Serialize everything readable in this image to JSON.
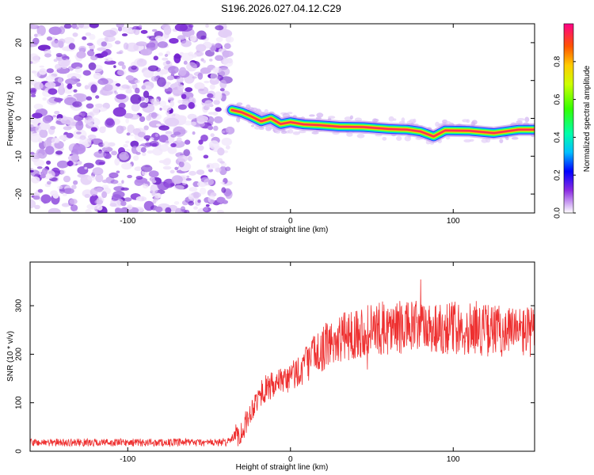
{
  "title": "S196.2026.027.04.12.C29",
  "chart_data": [
    {
      "type": "heatmap",
      "xlabel": "Height of straight line (km)",
      "ylabel": "Frequency (Hz)",
      "xlim": [
        -160,
        150
      ],
      "ylim": [
        -25,
        25
      ],
      "xticks": [
        -100,
        0,
        100
      ],
      "yticks": [
        -20,
        -10,
        0,
        10,
        20
      ],
      "colorbar": {
        "label": "Normalized spectral amplitude",
        "range": [
          0,
          1
        ],
        "ticks": [
          0.0,
          0.2,
          0.4,
          0.6,
          0.8
        ]
      },
      "noise_region_x": [
        -160,
        -37
      ],
      "ridge_x": [
        -37,
        150
      ],
      "ridge_freq": [
        {
          "x": -36,
          "f": 2.2
        },
        {
          "x": -30,
          "f": 1.6
        },
        {
          "x": -24,
          "f": 0.5
        },
        {
          "x": -18,
          "f": -0.8
        },
        {
          "x": -12,
          "f": 0.0
        },
        {
          "x": -6,
          "f": -1.5
        },
        {
          "x": 0,
          "f": -1.0
        },
        {
          "x": 8,
          "f": -1.6
        },
        {
          "x": 18,
          "f": -1.8
        },
        {
          "x": 30,
          "f": -2.2
        },
        {
          "x": 45,
          "f": -2.3
        },
        {
          "x": 60,
          "f": -2.8
        },
        {
          "x": 72,
          "f": -3.0
        },
        {
          "x": 80,
          "f": -3.5
        },
        {
          "x": 88,
          "f": -4.8
        },
        {
          "x": 95,
          "f": -3.2
        },
        {
          "x": 110,
          "f": -3.3
        },
        {
          "x": 125,
          "f": -3.9
        },
        {
          "x": 140,
          "f": -3.0
        },
        {
          "x": 150,
          "f": -3.0
        }
      ]
    },
    {
      "type": "line",
      "xlabel": "Height of straight line (km)",
      "ylabel": "SNR (10 * v/v)",
      "xlim": [
        -160,
        150
      ],
      "ylim": [
        0,
        390
      ],
      "xticks": [
        -100,
        0,
        100
      ],
      "yticks": [
        0,
        100,
        200,
        300
      ],
      "color": "#ee3030",
      "envelope": [
        {
          "x": -160,
          "y": 18
        },
        {
          "x": -40,
          "y": 18
        },
        {
          "x": -30,
          "y": 40
        },
        {
          "x": -22,
          "y": 100
        },
        {
          "x": -15,
          "y": 130
        },
        {
          "x": -5,
          "y": 140
        },
        {
          "x": 5,
          "y": 165
        },
        {
          "x": 15,
          "y": 200
        },
        {
          "x": 25,
          "y": 225
        },
        {
          "x": 40,
          "y": 245
        },
        {
          "x": 60,
          "y": 255
        },
        {
          "x": 80,
          "y": 255
        },
        {
          "x": 100,
          "y": 255
        },
        {
          "x": 120,
          "y": 250
        },
        {
          "x": 150,
          "y": 245
        }
      ]
    }
  ]
}
